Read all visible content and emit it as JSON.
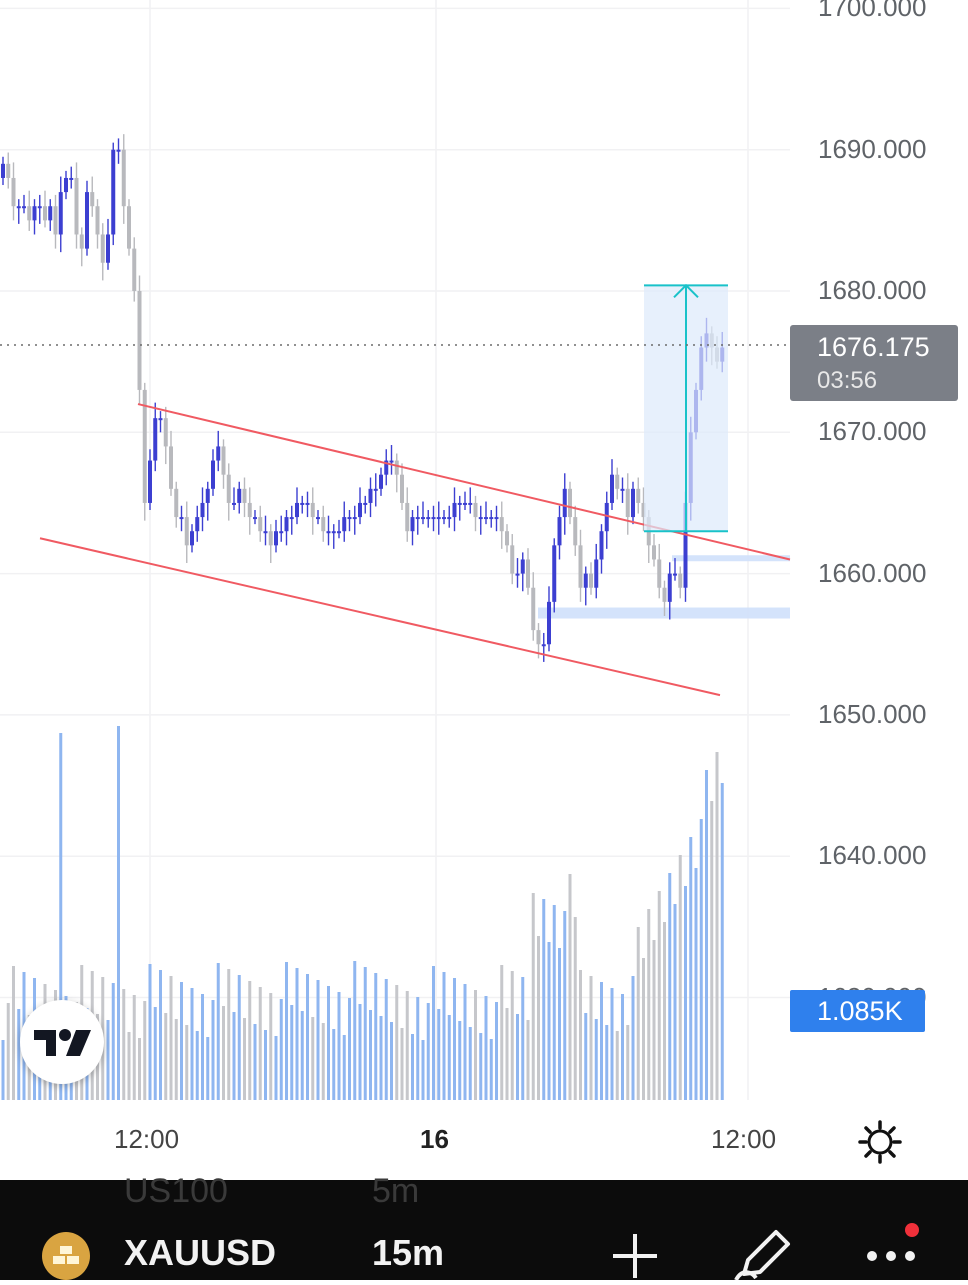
{
  "price_axis": [
    "1700.000",
    "1690.000",
    "1680.000",
    "1670.000",
    "1660.000",
    "1650.000",
    "1640.000",
    "1630.000"
  ],
  "time_axis": [
    "12:00",
    "16",
    "12:00"
  ],
  "current_price": {
    "value": "1676.175",
    "countdown": "03:56"
  },
  "volume_label": "1.085K",
  "toolbar": {
    "ghost_symbol": "US100",
    "ghost_interval": "5m",
    "symbol": "XAUUSD",
    "interval": "15m"
  },
  "icons": [
    "tradingview-logo-icon",
    "gear-icon",
    "gold-coin-icon",
    "plus-icon",
    "pencil-icon",
    "more-dots-icon"
  ],
  "colors": {
    "up": "#3c3fd1",
    "down": "#b8b9bd",
    "vol_up": "#8fb6f0",
    "vol_down": "#c6c7cb",
    "channel": "#f05a62",
    "measure": "#19c2c9",
    "zone": "#cfe0fb"
  },
  "chart_data": {
    "type": "candlestick",
    "symbol": "XAUUSD",
    "interval": "15m",
    "ylim": [
      1648,
      1701
    ],
    "current_price": 1676.175,
    "channel": {
      "upper": [
        [
          1672.0,
          1661.0
        ]
      ],
      "lower": [
        [
          1662.5,
          1651.4
        ]
      ]
    },
    "measure": {
      "from": 1663.0,
      "to": 1680.4
    },
    "closes": [
      1689,
      1688,
      1686,
      1686,
      1686,
      1685,
      1686,
      1686,
      1685,
      1686,
      1684,
      1687,
      1688,
      1688,
      1684,
      1683,
      1687,
      1686,
      1684,
      1682,
      1684,
      1690,
      1690,
      1686,
      1683,
      1680,
      1673,
      1665,
      1668,
      1671,
      1671,
      1669,
      1666,
      1664,
      1664,
      1662,
      1663,
      1664,
      1665,
      1666,
      1668,
      1669,
      1667,
      1665,
      1665,
      1666,
      1665,
      1664,
      1664,
      1663,
      1663,
      1662,
      1663,
      1663,
      1664,
      1664,
      1665,
      1665,
      1665,
      1664,
      1664,
      1663,
      1663,
      1663,
      1663,
      1664,
      1664,
      1664,
      1665,
      1665,
      1666,
      1666,
      1667,
      1668,
      1668,
      1667,
      1665,
      1663,
      1664,
      1664,
      1664,
      1664,
      1664,
      1664,
      1664,
      1664,
      1665,
      1665,
      1665,
      1665,
      1664,
      1664,
      1664,
      1664,
      1664,
      1663,
      1662,
      1660,
      1660,
      1661,
      1659,
      1656,
      1655,
      1655,
      1658,
      1662,
      1664,
      1666,
      1664,
      1662,
      1659,
      1660,
      1659,
      1661,
      1663,
      1665,
      1667,
      1666,
      1666,
      1664,
      1666,
      1665,
      1664,
      1662,
      1661,
      1659,
      1658,
      1660,
      1660,
      1659,
      1665,
      1670,
      1673,
      1676,
      1677,
      1676,
      1675,
      1676
    ]
  }
}
